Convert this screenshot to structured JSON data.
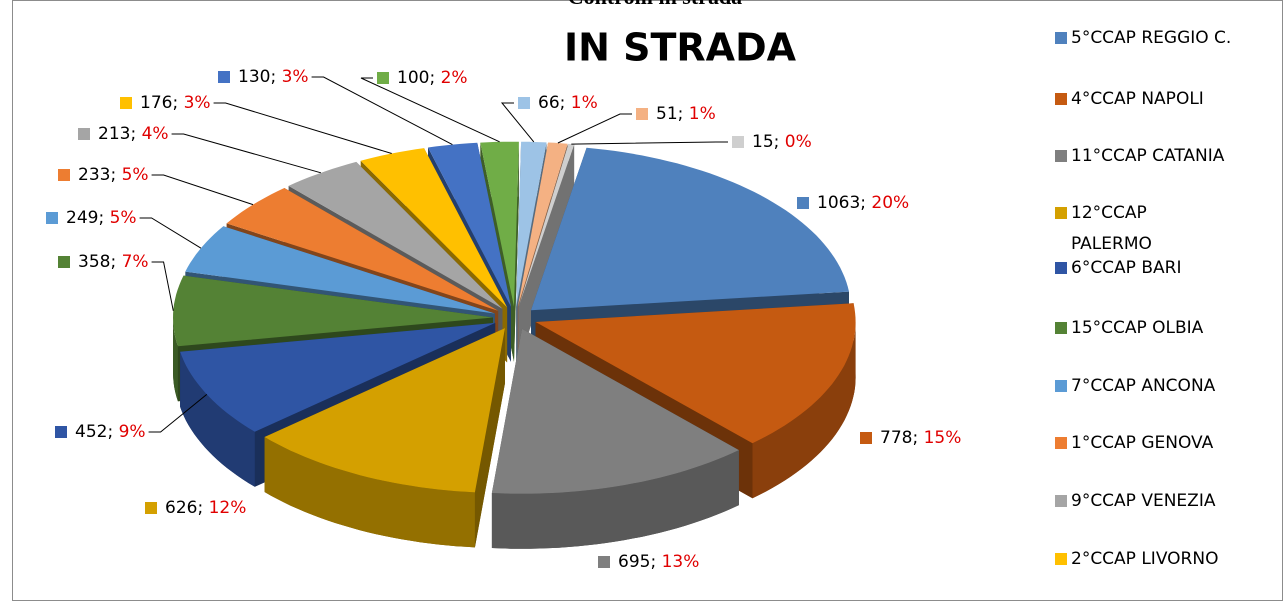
{
  "chart_data": {
    "type": "pie",
    "supertitle": "Controlli in strada",
    "title": "IN STRADA",
    "categories": [
      "5°CCAP REGGIO C.",
      "4°CCAP NAPOLI",
      "11°CCAP CATANIA",
      "12°CCAP PALERMO",
      "6°CCAP BARI",
      "15°CCAP OLBIA",
      "7°CCAP ANCONA",
      "1°CCAP GENOVA",
      "9°CCAP VENEZIA",
      "2°CCAP LIVORNO",
      null,
      null,
      null,
      null,
      null
    ],
    "values": [
      1063,
      778,
      695,
      626,
      452,
      358,
      249,
      233,
      213,
      176,
      130,
      100,
      66,
      51,
      15
    ],
    "value_labels": [
      "1063; 20%",
      "778; 15%",
      "695; 13%",
      "626; 12%",
      "452; 9%",
      "358; 7%",
      "249; 5%",
      "233; 5%",
      "213; 4%",
      "176; 3%",
      "130; 3%",
      "100; 2%",
      "66; 1%",
      "51; 1%",
      "15; 0%"
    ],
    "colors": [
      "#4f81bd",
      "#c55a11",
      "#7f7f7f",
      "#d4a000",
      "#2f55a4",
      "#548235",
      "#5b9bd5",
      "#ed7d31",
      "#a5a5a5",
      "#ffc000",
      "#4472c4",
      "#70ad47",
      "#9dc3e6",
      "#f4b183",
      "#cfcfcf"
    ],
    "legend": "right"
  }
}
